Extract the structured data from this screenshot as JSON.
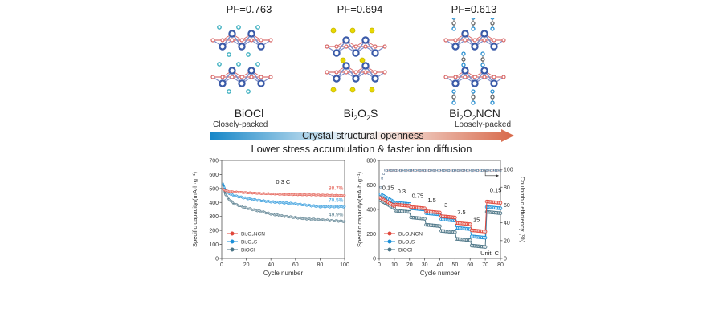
{
  "structures": [
    {
      "pf": "PF=0.763",
      "name_parts": [
        "BiOCl"
      ],
      "formula": "BiOCl",
      "anion": "Cl",
      "anion_color": "#3fb0c0"
    },
    {
      "pf": "PF=0.694",
      "formula": "Bi2O2S",
      "anion": "S",
      "anion_color": "#e8d800"
    },
    {
      "pf": "PF=0.613",
      "formula": "Bi2O2NCN",
      "anion": "NCN",
      "anion_color": "#2a8fd0"
    }
  ],
  "names": {
    "biocl": "BiOCl",
    "bi2o2s": {
      "a": "Bi",
      "s1": "2",
      "b": "O",
      "s2": "2",
      "c": "S"
    },
    "bi2o2ncn": {
      "a": "Bi",
      "s1": "2",
      "b": "O",
      "s2": "2",
      "c": "NCN"
    }
  },
  "arrow": {
    "left_label": "Closely-packed",
    "right_label": "Loosely-packed",
    "center_label": "Crystal structural openness",
    "caption": "Lower stress accumulation & faster ion diffusion",
    "start_color": "#1787c8",
    "end_color": "#d8694a"
  },
  "colors": {
    "Bi2O2NCN": "#e0463a",
    "Bi2O2S": "#1a8fd8",
    "BiOCl": "#4c7586",
    "Bi_atom": "#3a5aa8",
    "O_atom": "#d86a6a"
  },
  "chart_data": [
    {
      "type": "line",
      "title": "",
      "xlabel": "Cycle number",
      "ylabel": "Specific capacity/(mA·h·g⁻¹)",
      "xlim": [
        0,
        100
      ],
      "ylim": [
        0,
        700
      ],
      "xticks": [
        0,
        20,
        40,
        60,
        80,
        100
      ],
      "yticks": [
        0,
        100,
        200,
        300,
        400,
        500,
        600,
        700
      ],
      "annotation": "0.3 C",
      "legend_position": "bottom-left",
      "series": [
        {
          "name": "Bi2O2NCN",
          "label": "Bi₂O₂NCN",
          "retention": "88.7%",
          "x": [
            1,
            3,
            5,
            10,
            20,
            30,
            40,
            50,
            60,
            70,
            80,
            90,
            100
          ],
          "y": [
            495,
            485,
            480,
            475,
            470,
            465,
            462,
            458,
            456,
            455,
            453,
            451,
            450
          ]
        },
        {
          "name": "Bi2O2S",
          "label": "Bi₂O₂S",
          "retention": "70.5%",
          "x": [
            1,
            3,
            5,
            10,
            20,
            30,
            40,
            50,
            60,
            70,
            80,
            90,
            100
          ],
          "y": [
            530,
            490,
            470,
            448,
            430,
            415,
            405,
            398,
            390,
            380,
            370,
            370,
            370
          ]
        },
        {
          "name": "BiOCl",
          "label": "BiOCl",
          "retention": "49.9%",
          "x": [
            1,
            3,
            5,
            10,
            20,
            30,
            40,
            50,
            60,
            70,
            80,
            90,
            100
          ],
          "y": [
            530,
            460,
            430,
            390,
            360,
            340,
            318,
            302,
            292,
            282,
            276,
            270,
            265
          ]
        }
      ]
    },
    {
      "type": "line",
      "title": "",
      "xlabel": "Cycle number",
      "ylabel": "Specific capacity/(mA·h·g⁻¹)",
      "y2label": "Coulombic efficiency (%)",
      "xlim": [
        0,
        80
      ],
      "ylim": [
        0,
        800
      ],
      "y2lim": [
        0,
        110
      ],
      "xticks": [
        0,
        10,
        20,
        30,
        40,
        50,
        60,
        70,
        80
      ],
      "yticks": [
        0,
        200,
        400,
        600,
        800
      ],
      "y2ticks": [
        0,
        20,
        40,
        60,
        80,
        100
      ],
      "unit_label": "Unit: C",
      "legend_position": "bottom-left",
      "rates": [
        "0.15",
        "0.3",
        "0.75",
        "1.5",
        "3",
        "7.5",
        "15",
        "0.15"
      ],
      "series": [
        {
          "name": "Bi2O2NCN",
          "label": "Bi₂O₂NCN",
          "segment_values": [
            470,
            440,
            420,
            385,
            345,
            290,
            230,
            465
          ]
        },
        {
          "name": "Bi2O2S",
          "label": "Bi₂O₂S",
          "segment_values": [
            500,
            455,
            410,
            370,
            320,
            250,
            180,
            420
          ]
        },
        {
          "name": "BiOCl",
          "label": "BiOCl",
          "segment_values": [
            450,
            390,
            335,
            275,
            225,
            160,
            105,
            380
          ]
        }
      ],
      "coulombic_efficiency": {
        "initial": [
          80,
          90,
          95
        ],
        "steady": 99
      }
    }
  ]
}
